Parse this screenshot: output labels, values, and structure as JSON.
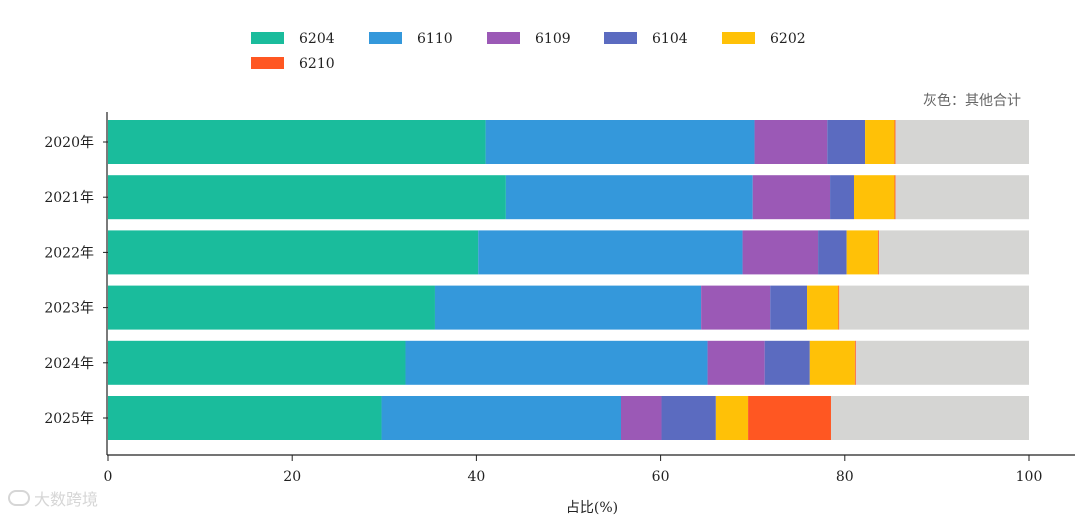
{
  "chart_data": {
    "type": "bar",
    "orientation": "horizontal",
    "stacked": true,
    "categories": [
      "2020年",
      "2021年",
      "2022年",
      "2023年",
      "2024年",
      "2025年"
    ],
    "series": [
      {
        "name": "6204",
        "color": "#1abc9c",
        "values": [
          41.0,
          43.2,
          40.2,
          35.5,
          32.3,
          29.7
        ]
      },
      {
        "name": "6110",
        "color": "#3498db",
        "values": [
          29.2,
          26.8,
          28.7,
          28.9,
          32.8,
          26.0
        ]
      },
      {
        "name": "6109",
        "color": "#9b59b6",
        "values": [
          7.9,
          8.4,
          8.2,
          7.5,
          6.2,
          4.4
        ]
      },
      {
        "name": "6104",
        "color": "#5b6bc0",
        "values": [
          4.1,
          2.6,
          3.1,
          4.0,
          4.9,
          5.9
        ]
      },
      {
        "name": "6202",
        "color": "#ffc107",
        "values": [
          3.2,
          4.4,
          3.4,
          3.4,
          4.9,
          3.5
        ]
      },
      {
        "name": "6210",
        "color": "#ff5722",
        "values": [
          0.1,
          0.1,
          0.1,
          0.1,
          0.1,
          9.0
        ]
      }
    ],
    "other": {
      "name": "其他合计",
      "color": "#d5d5d3"
    },
    "xlabel": "占比(%)",
    "ylabel": "",
    "xlim": [
      0,
      100
    ],
    "xticks": [
      0,
      20,
      40,
      60,
      80,
      100
    ],
    "note": "灰色：其他合计",
    "legend_position": "top"
  },
  "watermark": {
    "text": "大数跨境"
  }
}
